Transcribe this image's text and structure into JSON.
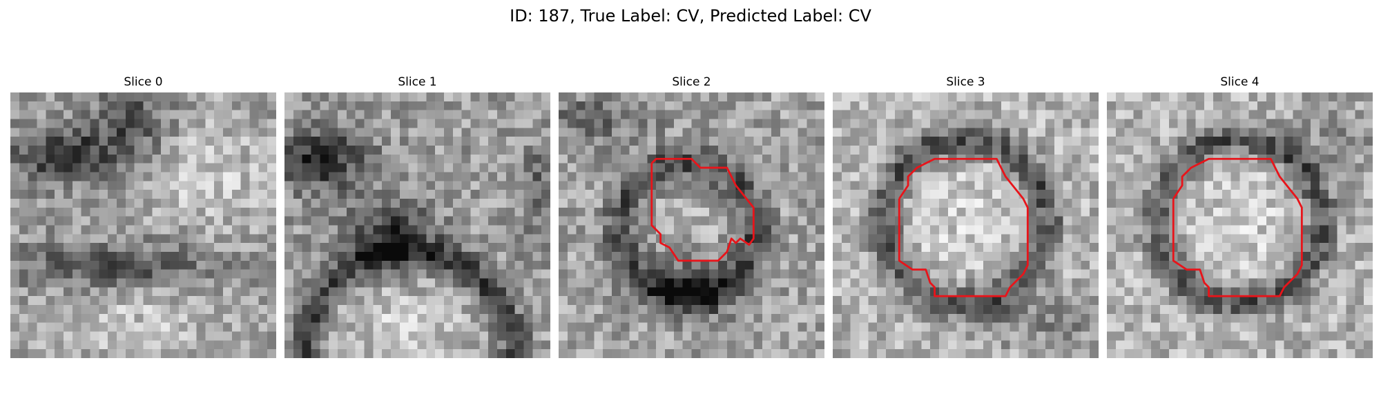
{
  "figure": {
    "title": "ID: 187, True Label: CV, Predicted Label: CV"
  },
  "panels": [
    {
      "title": "Slice 0"
    },
    {
      "title": "Slice 1"
    },
    {
      "title": "Slice 2"
    },
    {
      "title": "Slice 3"
    },
    {
      "title": "Slice 4"
    }
  ],
  "colors": {
    "contour": "#e8141a",
    "background": "#ffffff"
  }
}
